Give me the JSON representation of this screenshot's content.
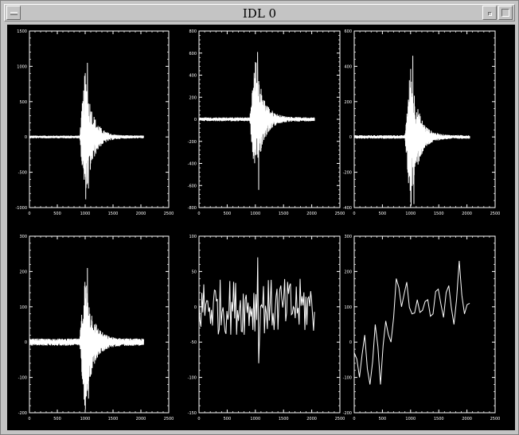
{
  "window": {
    "title": "IDL 0"
  },
  "icons": {
    "menu": "window-menu-icon",
    "minimize": "minimize-icon",
    "maximize": "maximize-icon"
  },
  "colors": {
    "plot_background": "#000000",
    "plot_foreground": "#ffffff",
    "window_chrome": "#c4c4c4"
  },
  "chart_data": [
    {
      "type": "line",
      "xlim": [
        0,
        2500
      ],
      "ylim": [
        -1000,
        1500
      ],
      "xticks": [
        "0",
        "500",
        "1000",
        "1500",
        "2000",
        "2500"
      ],
      "yticks": [
        "-1000",
        "-500",
        "0",
        "500",
        "1000",
        "1500"
      ],
      "signal": "burst",
      "burst_center": 1000,
      "burst_peak": [
        1050,
        -730
      ],
      "data_end": 2050,
      "noise": 20
    },
    {
      "type": "line",
      "xlim": [
        0,
        2500
      ],
      "ylim": [
        -800,
        800
      ],
      "xticks": [
        "0",
        "500",
        "1000",
        "1500",
        "2000",
        "2500"
      ],
      "yticks": [
        "-800",
        "-600",
        "-400",
        "-200",
        "0",
        "200",
        "400",
        "600",
        "800"
      ],
      "signal": "burst",
      "burst_center": 1000,
      "burst_peak": [
        610,
        -640
      ],
      "data_end": 2050,
      "noise": 18
    },
    {
      "type": "line",
      "xlim": [
        0,
        2500
      ],
      "ylim": [
        -400,
        600
      ],
      "xticks": [
        "0",
        "500",
        "1000",
        "1500",
        "2000",
        "2500"
      ],
      "yticks": [
        "-400",
        "-200",
        "0",
        "200",
        "400",
        "600"
      ],
      "signal": "burst",
      "burst_center": 1000,
      "burst_peak": [
        460,
        -380
      ],
      "data_end": 2050,
      "noise": 10
    },
    {
      "type": "line",
      "xlim": [
        0,
        2500
      ],
      "ylim": [
        -200,
        300
      ],
      "xticks": [
        "0",
        "500",
        "1000",
        "1500",
        "2000",
        "2500"
      ],
      "yticks": [
        "-200",
        "-100",
        "0",
        "100",
        "200",
        "300"
      ],
      "signal": "burst",
      "burst_center": 1000,
      "burst_peak": [
        210,
        -160
      ],
      "data_end": 2050,
      "noise": 10
    },
    {
      "type": "line",
      "xlim": [
        0,
        2500
      ],
      "ylim": [
        -150,
        100
      ],
      "xticks": [
        "0",
        "500",
        "1000",
        "1500",
        "2000",
        "2500"
      ],
      "yticks": [
        "-150",
        "-100",
        "-50",
        "0",
        "50",
        "100"
      ],
      "signal": "oscillation",
      "data_end": 2050,
      "amplitude": 40,
      "peak": [
        1050,
        -80
      ]
    },
    {
      "type": "line",
      "xlim": [
        0,
        2500
      ],
      "ylim": [
        -200,
        300
      ],
      "xticks": [
        "0",
        "500",
        "1000",
        "1500",
        "2000",
        "2500"
      ],
      "yticks": [
        "-200",
        "-100",
        "0",
        "100",
        "200",
        "300"
      ],
      "signal": "trend",
      "data_end": 2050,
      "values": [
        -30,
        -100,
        20,
        -120,
        50,
        -120,
        60,
        0,
        180,
        100,
        170,
        80,
        120,
        90,
        120,
        80,
        150,
        70,
        160,
        50,
        230,
        80,
        110
      ]
    }
  ]
}
